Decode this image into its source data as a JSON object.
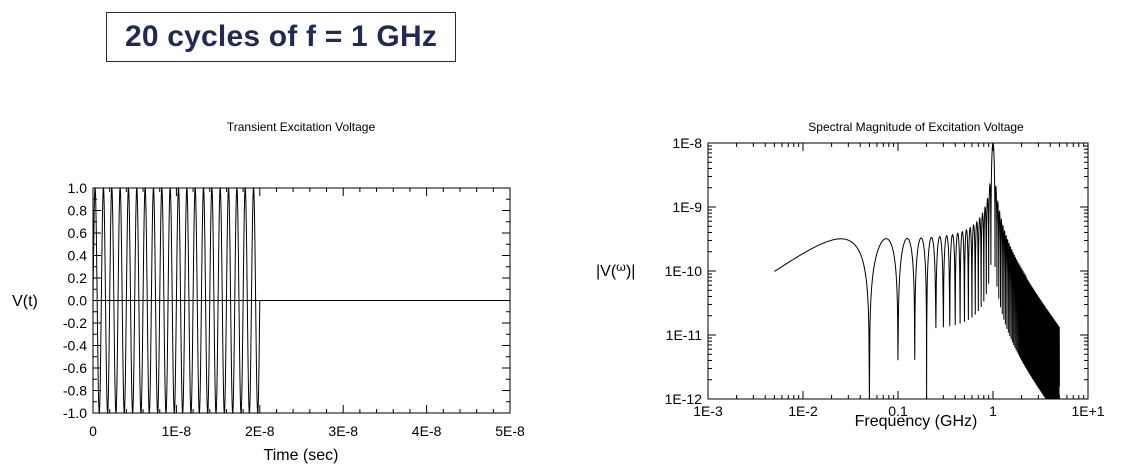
{
  "banner": {
    "text": "20 cycles of f = 1 GHz"
  },
  "chart_data": [
    {
      "type": "line",
      "title": "Transient Excitation Voltage",
      "xlabel": "Time (sec)",
      "ylabel": "V(t)",
      "xlim": [
        0,
        5e-08
      ],
      "ylim": [
        -1.0,
        1.0
      ],
      "x_tick_labels": [
        "0",
        "1E-8",
        "2E-8",
        "3E-8",
        "4E-8",
        "5E-8"
      ],
      "y_tick_labels": [
        "1.0",
        "0.8",
        "0.6",
        "0.4",
        "0.2",
        "0.0",
        "-0.2",
        "-0.4",
        "-0.6",
        "-0.8",
        "-1.0"
      ],
      "series": [
        {
          "function": "V(t) = sin(2π·1 GHz·t) for 0 ≤ t ≤ 2E-8 s, 0 otherwise",
          "frequency_GHz": 1,
          "cycles": 20,
          "amplitude": 1.0,
          "duration_s": 2e-08
        }
      ],
      "color": "#000000",
      "grid": false
    },
    {
      "type": "line",
      "title": "Spectral Magnitude of Excitation Voltage",
      "xlabel": "Frequency (GHz)",
      "ylabel_prefix": "|V(",
      "ylabel_symbol": "ω",
      "ylabel_suffix": ")|",
      "xscale": "log",
      "yscale": "log",
      "xlim": [
        0.001,
        10
      ],
      "ylim": [
        1e-12,
        1e-08
      ],
      "x_tick_labels": [
        "1E-3",
        "1E-2",
        "0.1",
        "1",
        "1E+1"
      ],
      "y_tick_labels": [
        "1E-8",
        "1E-9",
        "1E-10",
        "1E-11",
        "1E-12"
      ],
      "series": [
        {
          "function": "|V(f)| = |Fourier transform of 20-cycle 1 GHz sine burst|",
          "f_range_GHz": [
            0.005,
            5
          ],
          "peak_frequency_GHz": 1,
          "peak_value": 1e-08
        }
      ],
      "color": "#000000",
      "grid": false
    }
  ]
}
